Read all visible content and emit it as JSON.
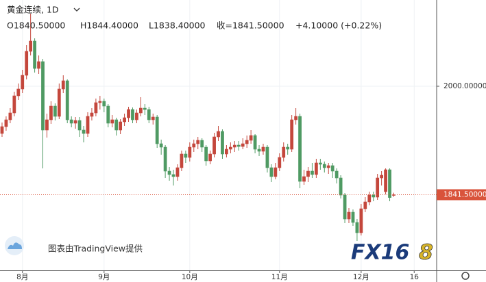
{
  "chart_data": {
    "type": "candlestick",
    "title": "黄金连续, 1D",
    "ohlc_labels": [
      "O1840.50000",
      "H1844.40000",
      "L1838.40000",
      "收=1841.50000",
      "+4.10000 (+0.22%)"
    ],
    "candles": {
      "open": [
        1931,
        1941,
        1951,
        1961,
        1986,
        1996,
        2016,
        2051,
        2066,
        2026,
        2036,
        1936,
        1951,
        1971,
        1956,
        1996,
        2008,
        1951,
        1946,
        1950,
        1936,
        1931,
        1956,
        1961,
        1976,
        1978,
        1971,
        1946,
        1951,
        1936,
        1948,
        1954,
        1966,
        1951,
        1961,
        1968,
        1966,
        1951,
        1955,
        1916,
        1911,
        1876,
        1871,
        1868,
        1881,
        1901,
        1896,
        1911,
        1916,
        1921,
        1911,
        1891,
        1901,
        1926,
        1934,
        1901,
        1908,
        1911,
        1914,
        1912,
        1916,
        1921,
        1928,
        1908,
        1905,
        1911,
        1881,
        1868,
        1881,
        1896,
        1911,
        1908,
        1951,
        1956,
        1861,
        1868,
        1876,
        1871,
        1888,
        1886,
        1881,
        1884,
        1876,
        1866,
        1841,
        1806,
        1816,
        1801,
        1786,
        1821,
        1831,
        1841,
        1838,
        1866,
        1846,
        1878,
        1840.5
      ],
      "high": [
        1947,
        1956,
        1968,
        1992,
        2004,
        2024,
        2060,
        2106,
        2070,
        2045,
        2040,
        1960,
        1978,
        1975,
        2004,
        2016,
        2010,
        1956,
        1955,
        1955,
        1942,
        1962,
        1968,
        1982,
        1986,
        1982,
        1974,
        1958,
        1954,
        1952,
        1960,
        1970,
        1969,
        1966,
        1984,
        1974,
        1970,
        1960,
        1958,
        1922,
        1914,
        1882,
        1878,
        1886,
        1906,
        1906,
        1918,
        1922,
        1926,
        1924,
        1914,
        1906,
        1932,
        1942,
        1937,
        1914,
        1918,
        1920,
        1920,
        1924,
        1928,
        1936,
        1930,
        1914,
        1916,
        1914,
        1886,
        1888,
        1902,
        1918,
        1916,
        1958,
        1968,
        1960,
        1878,
        1882,
        1888,
        1894,
        1894,
        1890,
        1888,
        1888,
        1880,
        1870,
        1844,
        1822,
        1820,
        1806,
        1828,
        1838,
        1846,
        1846,
        1872,
        1876,
        1880,
        1880,
        1844.4
      ],
      "low": [
        1926,
        1935,
        1946,
        1956,
        1980,
        1990,
        2010,
        2045,
        2020,
        2018,
        1880,
        1925,
        1945,
        1950,
        1952,
        1990,
        1946,
        1940,
        1938,
        1926,
        1918,
        1926,
        1950,
        1956,
        1966,
        1962,
        1940,
        1940,
        1928,
        1930,
        1942,
        1948,
        1946,
        1946,
        1956,
        1958,
        1946,
        1944,
        1910,
        1900,
        1866,
        1862,
        1855,
        1862,
        1876,
        1888,
        1890,
        1904,
        1908,
        1904,
        1884,
        1886,
        1896,
        1920,
        1894,
        1896,
        1902,
        1904,
        1906,
        1908,
        1910,
        1916,
        1902,
        1898,
        1900,
        1874,
        1860,
        1864,
        1876,
        1890,
        1900,
        1904,
        1944,
        1851,
        1856,
        1860,
        1866,
        1866,
        1878,
        1874,
        1872,
        1866,
        1858,
        1836,
        1800,
        1800,
        1796,
        1774,
        1782,
        1816,
        1826,
        1832,
        1834,
        1855,
        1842,
        1832,
        1838.4
      ],
      "close": [
        1941,
        1951,
        1961,
        1986,
        1996,
        2016,
        2051,
        2066,
        2026,
        2036,
        1936,
        1951,
        1971,
        1956,
        1996,
        2008,
        1951,
        1946,
        1950,
        1936,
        1931,
        1956,
        1961,
        1976,
        1978,
        1971,
        1946,
        1951,
        1936,
        1948,
        1954,
        1966,
        1951,
        1961,
        1968,
        1966,
        1951,
        1955,
        1916,
        1911,
        1876,
        1871,
        1868,
        1881,
        1901,
        1896,
        1911,
        1916,
        1921,
        1911,
        1891,
        1901,
        1926,
        1934,
        1901,
        1908,
        1911,
        1914,
        1912,
        1916,
        1921,
        1928,
        1908,
        1905,
        1911,
        1881,
        1868,
        1881,
        1896,
        1911,
        1908,
        1951,
        1956,
        1861,
        1868,
        1876,
        1871,
        1888,
        1886,
        1881,
        1884,
        1876,
        1866,
        1841,
        1806,
        1816,
        1801,
        1786,
        1821,
        1831,
        1841,
        1838,
        1866,
        1870,
        1878,
        1837.4,
        1841.5
      ]
    },
    "up_color": "#c4473c",
    "down_color": "#4f9a63",
    "ylim": [
      1731,
      2126
    ],
    "yticks": [
      {
        "value": 2000,
        "label": "2000.00000"
      }
    ],
    "xlim": [
      -0.5,
      106.5
    ],
    "xticks": [
      {
        "value": 5,
        "label": "8月"
      },
      {
        "value": 25,
        "label": "9月"
      },
      {
        "value": 46,
        "label": "10月"
      },
      {
        "value": 68,
        "label": "11月"
      },
      {
        "value": 88,
        "label": "12月"
      },
      {
        "value": 101,
        "label": "16"
      }
    ],
    "grid": true,
    "last_price": {
      "value": 1841.5,
      "label": "1841.50000"
    },
    "last_price_color": "#d9533b",
    "watermark": "图表由TradingView提供",
    "logo": [
      "FX16",
      "8"
    ]
  }
}
